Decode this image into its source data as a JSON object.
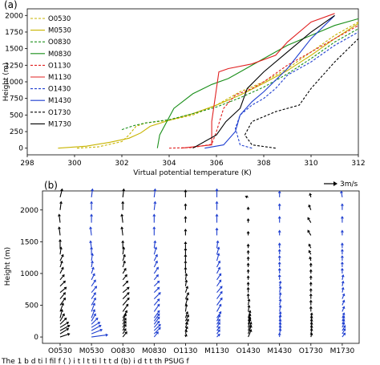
{
  "panel_a": {
    "label": "(a)",
    "legend": [
      {
        "name": "O0530",
        "color": "#c8b400",
        "dash": true
      },
      {
        "name": "M0530",
        "color": "#c8b400",
        "dash": false
      },
      {
        "name": "O0830",
        "color": "#1a8f1a",
        "dash": true
      },
      {
        "name": "M0830",
        "color": "#1a8f1a",
        "dash": false
      },
      {
        "name": "O1130",
        "color": "#e02020",
        "dash": true
      },
      {
        "name": "M1130",
        "color": "#e02020",
        "dash": false
      },
      {
        "name": "O1430",
        "color": "#1f3fd0",
        "dash": true
      },
      {
        "name": "M1430",
        "color": "#1f3fd0",
        "dash": false
      },
      {
        "name": "O1730",
        "color": "#000000",
        "dash": true
      },
      {
        "name": "M1730",
        "color": "#000000",
        "dash": false
      }
    ]
  },
  "panel_b": {
    "label": "(b)",
    "scale_label": "3m/s"
  },
  "caption_fragment": "The 1 b d     ti l   fil     f ( )   i t l        t ti l t         t        d (b)  i d      t     t th  PSUG f",
  "chart_data": [
    {
      "type": "line",
      "title": "",
      "xlabel": "Virtual potential temperature (K)",
      "ylabel": "Height (m)",
      "xlim": [
        298,
        312
      ],
      "ylim": [
        -100,
        2100
      ],
      "xticks": [
        298,
        300,
        302,
        304,
        306,
        308,
        310,
        312
      ],
      "yticks": [
        0,
        250,
        500,
        750,
        1000,
        1250,
        1500,
        1750,
        2000
      ],
      "grid": false,
      "legend_position": "upper-left",
      "series": [
        {
          "name": "O0530",
          "x": [
            300.1,
            301.0,
            302.0,
            302.3,
            302.6,
            303.0,
            304.0,
            305.0,
            306.0,
            307.0,
            308.0,
            309.0,
            310.0,
            311.0,
            312.0
          ],
          "y": [
            0,
            20,
            100,
            200,
            330,
            380,
            420,
            500,
            650,
            850,
            1000,
            1200,
            1450,
            1700,
            1900
          ]
        },
        {
          "name": "M0530",
          "x": [
            299.3,
            300.5,
            301.5,
            302.3,
            302.8,
            303.2,
            304.0,
            305.0,
            306.0,
            307.0,
            308.0,
            309.0,
            310.0,
            311.0,
            312.0
          ],
          "y": [
            0,
            30,
            90,
            150,
            230,
            330,
            420,
            520,
            650,
            800,
            980,
            1170,
            1400,
            1650,
            1880
          ]
        },
        {
          "name": "O0830",
          "x": [
            302.0,
            302.5,
            303.0,
            304.0,
            305.0,
            306.0,
            307.0,
            308.0,
            309.0,
            310.0,
            311.0,
            312.0
          ],
          "y": [
            280,
            340,
            380,
            430,
            520,
            620,
            760,
            920,
            1120,
            1350,
            1600,
            1800
          ]
        },
        {
          "name": "M0830",
          "x": [
            303.5,
            303.6,
            304.2,
            305.0,
            305.8,
            306.5,
            307.0,
            308.0,
            309.0,
            310.0,
            311.0,
            312.0
          ],
          "y": [
            0,
            200,
            600,
            820,
            960,
            1050,
            1150,
            1350,
            1550,
            1700,
            1850,
            1950
          ]
        },
        {
          "name": "O1130",
          "x": [
            304.0,
            305.0,
            305.8,
            306.0,
            306.3,
            306.8,
            307.5,
            308.0,
            309.0,
            310.0,
            311.0,
            312.0
          ],
          "y": [
            0,
            10,
            60,
            250,
            600,
            800,
            900,
            1000,
            1250,
            1450,
            1650,
            1850
          ]
        },
        {
          "name": "M1130",
          "x": [
            304.5,
            305.8,
            305.8,
            306.1,
            306.5,
            307.5,
            308.5,
            309.0,
            310.0,
            311.0
          ],
          "y": [
            0,
            50,
            400,
            1150,
            1200,
            1270,
            1400,
            1600,
            1900,
            2030
          ]
        },
        {
          "name": "O1430",
          "x": [
            307.5,
            307.0,
            306.8,
            307.0,
            307.5,
            308.0,
            308.5,
            309.0,
            310.0,
            311.0,
            312.0
          ],
          "y": [
            0,
            50,
            300,
            500,
            650,
            750,
            900,
            1100,
            1300,
            1550,
            1750
          ]
        },
        {
          "name": "M1430",
          "x": [
            305.5,
            306.3,
            306.8,
            307.0,
            307.5,
            308.0,
            309.0,
            310.0,
            311.0
          ],
          "y": [
            0,
            50,
            250,
            500,
            700,
            850,
            1200,
            1650,
            2000
          ]
        },
        {
          "name": "O1730",
          "x": [
            308.5,
            307.5,
            307.2,
            307.5,
            308.5,
            309.5,
            310.0,
            311.0,
            312.0
          ],
          "y": [
            0,
            50,
            200,
            400,
            550,
            650,
            900,
            1300,
            1650
          ]
        },
        {
          "name": "M1730",
          "x": [
            305.0,
            306.0,
            306.4,
            307.0,
            307.3,
            308.0,
            309.0,
            310.0,
            311.0
          ],
          "y": [
            0,
            200,
            400,
            600,
            900,
            1150,
            1450,
            1750,
            2000
          ]
        }
      ]
    },
    {
      "type": "scatter",
      "title": "",
      "xlabel": "",
      "ylabel": "Height (m)",
      "ylim": [
        -100,
        2300
      ],
      "yticks": [
        0,
        500,
        1000,
        1500,
        2000
      ],
      "categories": [
        "O0530",
        "M0530",
        "O0830",
        "M0830",
        "O1130",
        "M1130",
        "O1430",
        "M1430",
        "O1730",
        "M1730"
      ],
      "category_colors": [
        "#000000",
        "#1f3fd0",
        "#000000",
        "#1f3fd0",
        "#000000",
        "#1f3fd0",
        "#000000",
        "#1f3fd0",
        "#000000",
        "#1f3fd0"
      ],
      "heights": [
        0,
        50,
        100,
        150,
        200,
        250,
        300,
        400,
        500,
        600,
        700,
        800,
        900,
        1000,
        1100,
        1200,
        1300,
        1400,
        1600,
        1800,
        2000,
        2200
      ],
      "wind_u": [
        [
          0.9,
          0.8,
          0.9,
          0.8,
          0.6,
          0.4,
          0.2,
          0.3,
          0.5,
          0.5,
          0.6,
          0.5,
          0.4,
          0.3,
          0.2,
          0.3,
          0.1,
          0.0,
          -0.1,
          -0.1,
          0.1,
          0.2
        ],
        [
          1.5,
          1.0,
          0.9,
          0.8,
          0.6,
          0.4,
          0.3,
          0.3,
          0.4,
          0.4,
          0.5,
          0.4,
          0.3,
          0.2,
          0.1,
          0.1,
          0.0,
          -0.1,
          -0.1,
          0.0,
          0.0,
          0.1
        ],
        [
          0.4,
          0.3,
          0.3,
          0.3,
          0.3,
          0.3,
          0.4,
          0.5,
          0.6,
          0.6,
          0.6,
          0.5,
          0.4,
          0.3,
          0.2,
          0.2,
          0.1,
          0.0,
          -0.1,
          -0.1,
          0.0,
          0.1
        ],
        [
          0.4,
          0.6,
          0.6,
          0.5,
          0.5,
          0.5,
          0.5,
          0.5,
          0.5,
          0.6,
          0.5,
          0.5,
          0.4,
          0.4,
          0.3,
          0.3,
          0.2,
          0.1,
          0.0,
          0.0,
          0.1,
          0.1
        ],
        [
          0.1,
          0.1,
          0.2,
          0.2,
          0.3,
          0.3,
          0.2,
          0.1,
          0.2,
          0.3,
          0.2,
          0.1,
          0.1,
          0.0,
          0.0,
          0.0,
          0.0,
          0.0,
          0.0,
          0.0,
          0.0,
          0.0
        ],
        [
          0.3,
          0.3,
          0.3,
          0.3,
          0.3,
          0.3,
          0.4,
          0.4,
          0.5,
          0.5,
          0.5,
          0.4,
          0.4,
          0.3,
          0.3,
          0.2,
          0.2,
          0.1,
          0.0,
          0.0,
          0.0,
          0.0
        ],
        [
          0.3,
          0.3,
          0.3,
          0.2,
          0.2,
          0.2,
          0.2,
          0.1,
          0.1,
          0.0,
          0.0,
          0.0,
          0.0,
          0.0,
          0.0,
          0.0,
          0.0,
          0.0,
          0.0,
          0.0,
          0.0,
          -0.3
        ],
        [
          0.0,
          0.1,
          0.1,
          0.1,
          0.1,
          0.1,
          0.1,
          0.1,
          0.1,
          0.1,
          0.1,
          0.1,
          0.0,
          0.0,
          0.0,
          0.0,
          0.0,
          0.0,
          0.0,
          0.0,
          0.0,
          0.0
        ],
        [
          0.1,
          0.1,
          0.1,
          0.1,
          0.1,
          0.1,
          0.1,
          0.0,
          0.0,
          0.0,
          0.0,
          0.0,
          0.0,
          0.0,
          0.0,
          -0.1,
          -0.2,
          -0.2,
          -0.3,
          -0.3,
          -0.2,
          -0.1
        ],
        [
          0.3,
          0.3,
          0.3,
          0.2,
          0.2,
          0.2,
          0.2,
          0.2,
          0.2,
          0.2,
          0.1,
          0.1,
          0.1,
          0.0,
          0.0,
          0.0,
          0.0,
          0.0,
          0.0,
          0.0,
          0.0,
          -0.1
        ]
      ],
      "wind_v": [
        [
          0.3,
          0.5,
          0.5,
          0.5,
          0.6,
          0.7,
          0.8,
          0.8,
          0.7,
          0.6,
          0.5,
          0.5,
          0.5,
          0.6,
          0.6,
          0.6,
          0.7,
          0.8,
          0.8,
          0.8,
          0.8,
          0.8
        ],
        [
          0.2,
          0.4,
          0.5,
          0.5,
          0.6,
          0.7,
          0.8,
          0.8,
          0.7,
          0.6,
          0.6,
          0.6,
          0.6,
          0.6,
          0.6,
          0.7,
          0.7,
          0.7,
          0.8,
          0.8,
          0.8,
          0.8
        ],
        [
          0.5,
          0.5,
          0.6,
          0.6,
          0.6,
          0.7,
          0.7,
          0.7,
          0.7,
          0.6,
          0.5,
          0.5,
          0.5,
          0.5,
          0.6,
          0.6,
          0.7,
          0.7,
          0.8,
          0.8,
          0.8,
          0.8
        ],
        [
          0.5,
          0.6,
          0.6,
          0.6,
          0.7,
          0.7,
          0.7,
          0.7,
          0.6,
          0.6,
          0.5,
          0.5,
          0.5,
          0.6,
          0.6,
          0.6,
          0.7,
          0.7,
          0.8,
          0.8,
          0.8,
          0.8
        ],
        [
          0.3,
          0.4,
          0.4,
          0.5,
          0.5,
          0.6,
          0.6,
          0.7,
          0.7,
          0.6,
          0.6,
          0.6,
          0.6,
          0.6,
          0.6,
          0.6,
          0.6,
          0.6,
          0.6,
          0.6,
          0.6,
          0.7
        ],
        [
          0.3,
          0.4,
          0.4,
          0.5,
          0.5,
          0.6,
          0.6,
          0.7,
          0.7,
          0.7,
          0.6,
          0.6,
          0.6,
          0.6,
          0.6,
          0.7,
          0.7,
          0.7,
          0.7,
          0.8,
          0.8,
          0.8
        ],
        [
          0.7,
          0.8,
          0.8,
          0.8,
          0.7,
          0.7,
          0.7,
          0.6,
          0.6,
          0.5,
          0.5,
          0.4,
          0.4,
          0.4,
          0.4,
          0.4,
          0.4,
          0.4,
          0.4,
          0.4,
          0.3,
          0.1
        ],
        [
          0.4,
          0.5,
          0.5,
          0.5,
          0.5,
          0.6,
          0.6,
          0.6,
          0.6,
          0.6,
          0.6,
          0.5,
          0.5,
          0.5,
          0.5,
          0.5,
          0.5,
          0.5,
          0.5,
          0.6,
          0.6,
          0.6
        ],
        [
          0.4,
          0.5,
          0.5,
          0.5,
          0.5,
          0.5,
          0.5,
          0.5,
          0.5,
          0.5,
          0.4,
          0.4,
          0.4,
          0.4,
          0.4,
          0.4,
          0.4,
          0.4,
          0.5,
          0.5,
          0.5,
          0.4
        ],
        [
          0.4,
          0.5,
          0.5,
          0.5,
          0.5,
          0.5,
          0.5,
          0.5,
          0.5,
          0.5,
          0.5,
          0.5,
          0.5,
          0.5,
          0.5,
          0.5,
          0.5,
          0.5,
          0.5,
          0.6,
          0.6,
          0.6
        ]
      ]
    }
  ]
}
